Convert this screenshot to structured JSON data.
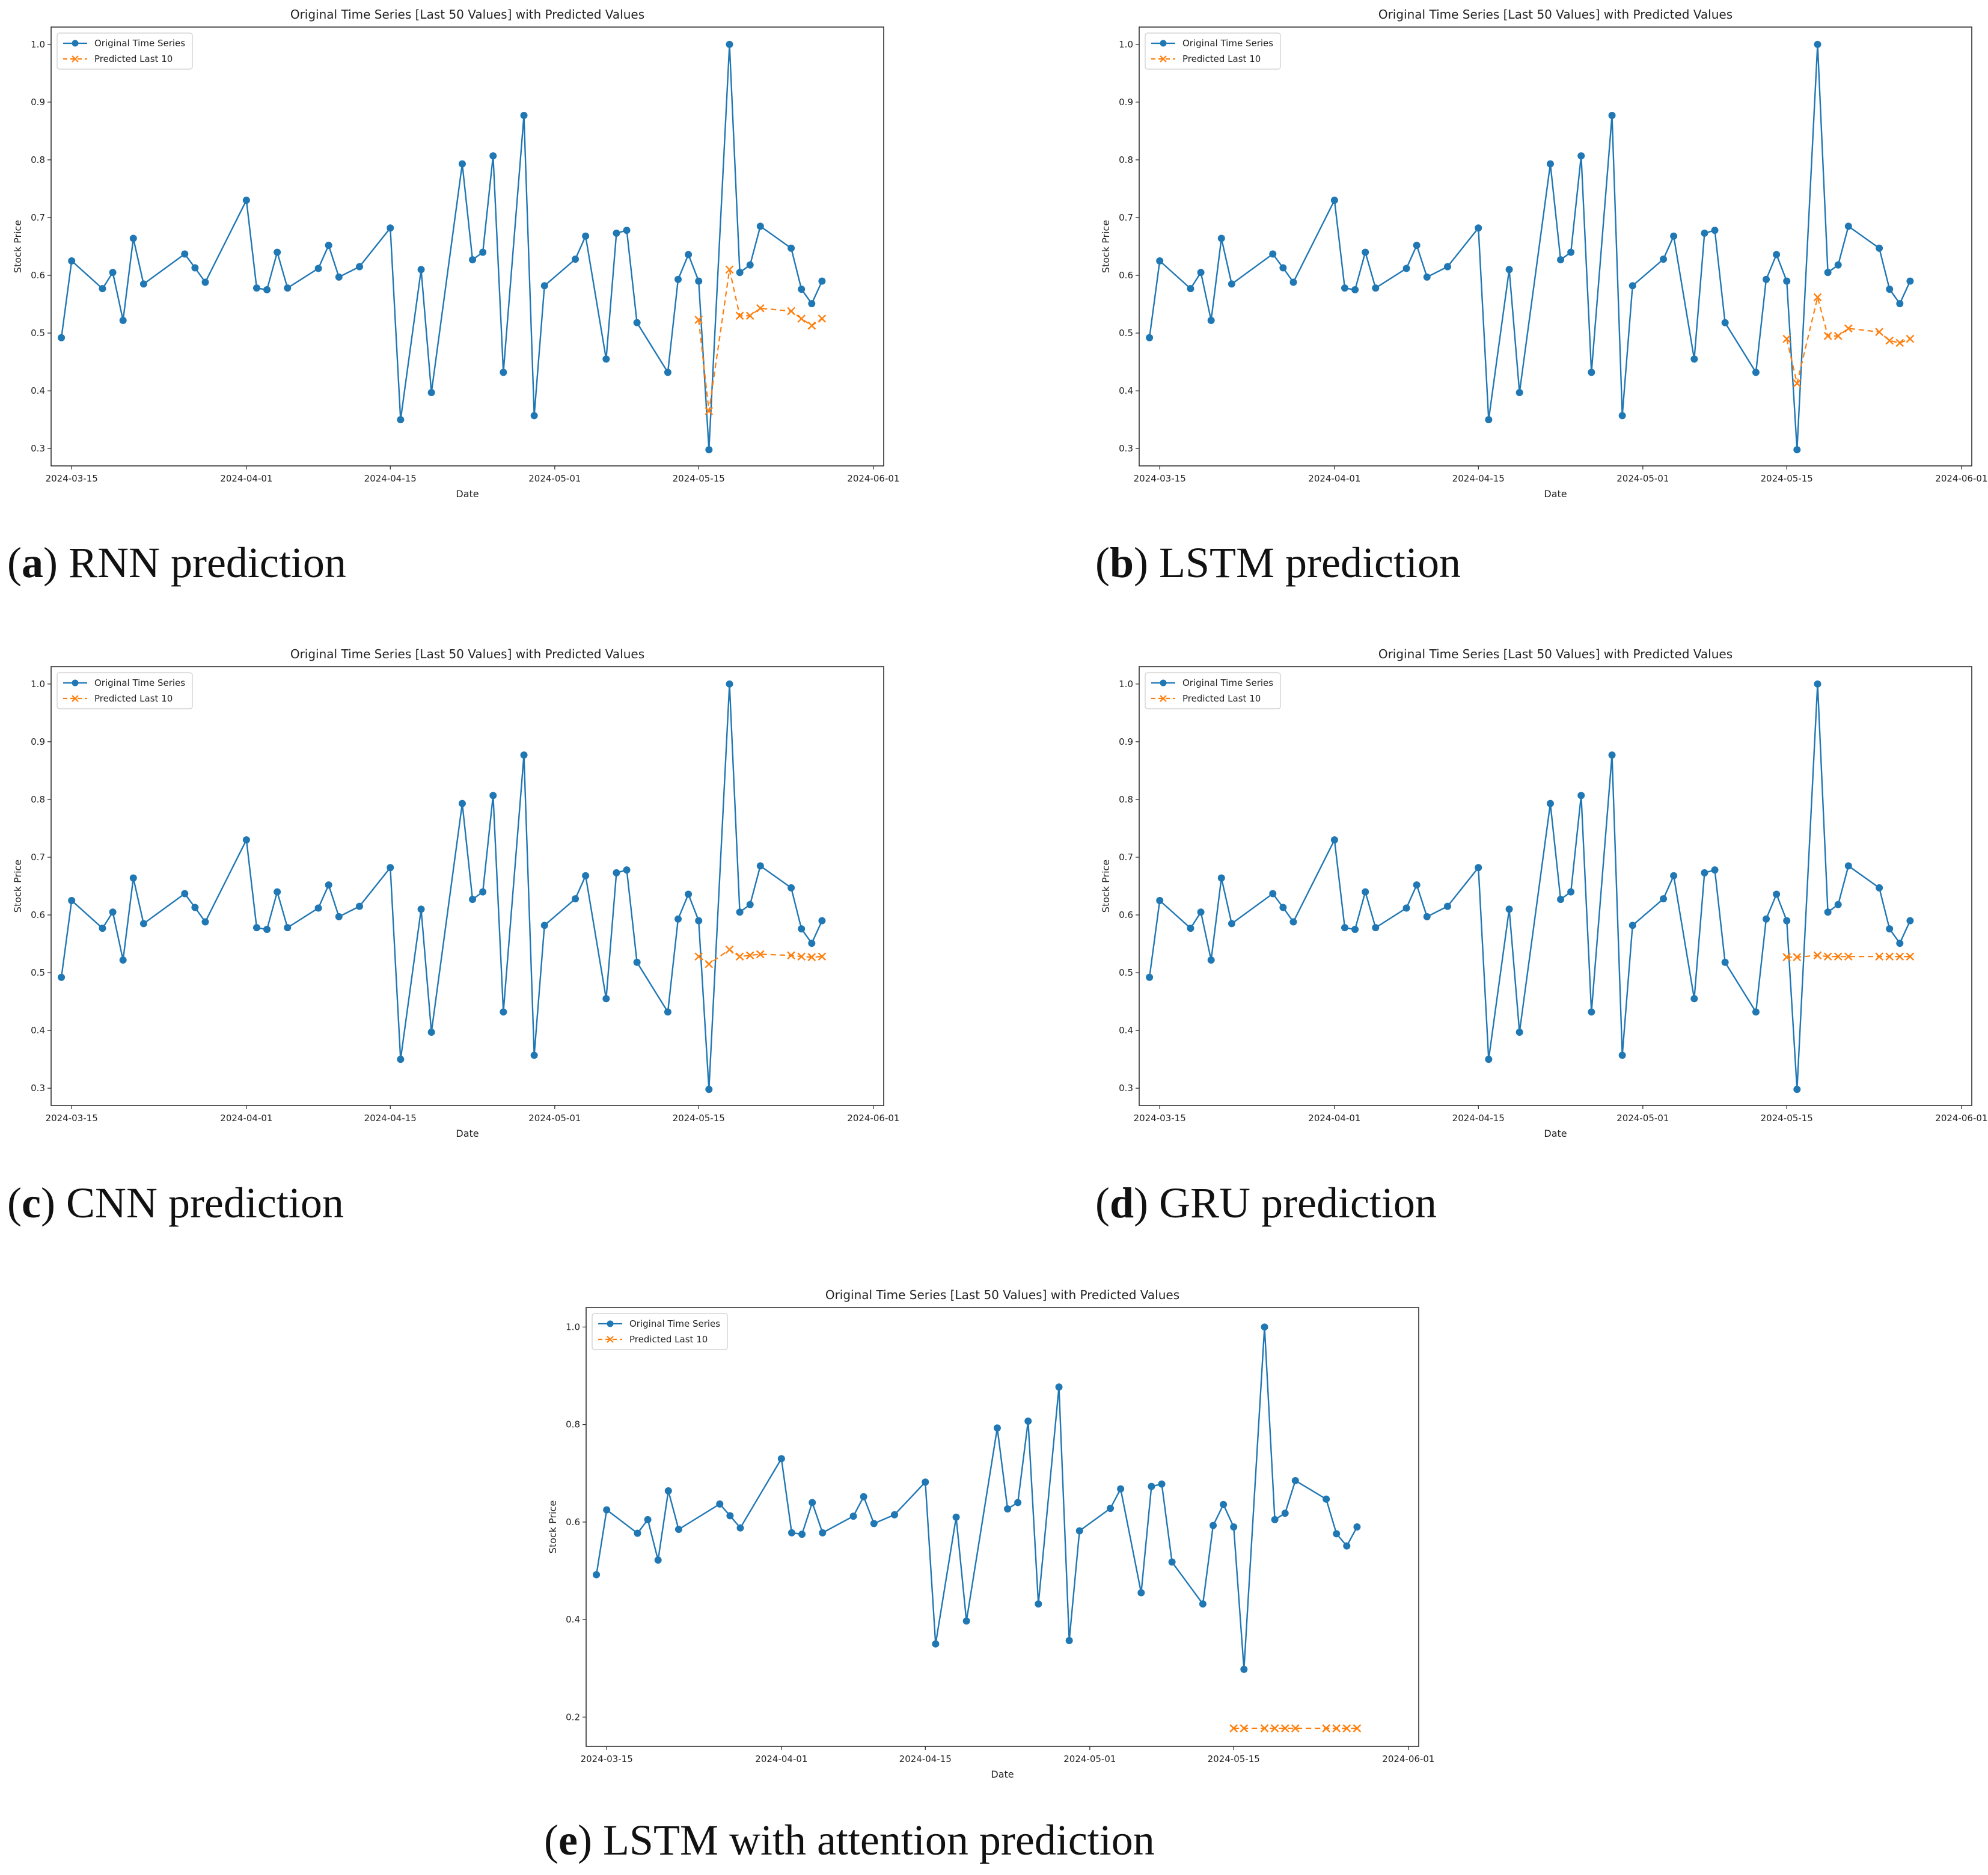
{
  "chart_data": [
    {
      "id": "a",
      "type": "line",
      "title": "Original Time Series [Last 50 Values] with Predicted Values",
      "xlabel": "Date",
      "ylabel": "Stock Price",
      "xlim_days": [
        -2,
        79
      ],
      "ylim": [
        0.27,
        1.03
      ],
      "yticks": [
        "0.3",
        "0.4",
        "0.5",
        "0.6",
        "0.7",
        "0.8",
        "0.9",
        "1.0"
      ],
      "xticks": [
        "2024-03-15",
        "2024-04-01",
        "2024-04-15",
        "2024-05-01",
        "2024-05-15",
        "2024-06-01"
      ],
      "xtick_days": [
        0,
        17,
        31,
        47,
        61,
        78
      ],
      "caption_letter": "a",
      "caption_text": " RNN prediction",
      "series": [
        {
          "name": "Original Time Series",
          "color": "#1f77b4",
          "marker": "o",
          "x_days": [
            -1,
            0,
            3,
            4,
            5,
            6,
            7,
            11,
            12,
            13,
            17,
            18,
            19,
            20,
            21,
            24,
            25,
            26,
            28,
            31,
            32,
            34,
            35,
            38,
            39,
            40,
            41,
            42,
            44,
            45,
            46,
            49,
            50,
            52,
            53,
            54,
            55,
            58,
            59,
            60,
            61,
            62,
            64,
            65,
            66,
            67,
            70,
            71,
            72,
            73
          ],
          "values": [
            0.492,
            0.625,
            0.577,
            0.605,
            0.522,
            0.664,
            0.585,
            0.637,
            0.613,
            0.588,
            0.73,
            0.578,
            0.575,
            0.64,
            0.578,
            0.612,
            0.652,
            0.597,
            0.615,
            0.682,
            0.35,
            0.61,
            0.397,
            0.793,
            0.627,
            0.64,
            0.807,
            0.432,
            0.877,
            0.357,
            0.582,
            0.628,
            0.668,
            0.455,
            0.673,
            0.678,
            0.518,
            0.432,
            0.593,
            0.636,
            0.59,
            0.298,
            1.0,
            0.605,
            0.618,
            0.685,
            0.647,
            0.576,
            0.551,
            0.59
          ]
        },
        {
          "name": "Predicted Last 10",
          "color": "#ff7f0e",
          "marker": "x",
          "x_days": [
            61,
            62,
            64,
            65,
            66,
            67,
            70,
            71,
            72,
            73
          ],
          "values": [
            0.523,
            0.365,
            0.61,
            0.53,
            0.53,
            0.543,
            0.538,
            0.525,
            0.513,
            0.525
          ]
        }
      ]
    },
    {
      "id": "b",
      "type": "line",
      "title": "Original Time Series [Last 50 Values] with Predicted Values",
      "xlabel": "Date",
      "ylabel": "Stock Price",
      "xlim_days": [
        -2,
        79
      ],
      "ylim": [
        0.27,
        1.03
      ],
      "yticks": [
        "0.3",
        "0.4",
        "0.5",
        "0.6",
        "0.7",
        "0.8",
        "0.9",
        "1.0"
      ],
      "xticks": [
        "2024-03-15",
        "2024-04-01",
        "2024-04-15",
        "2024-05-01",
        "2024-05-15",
        "2024-06-01"
      ],
      "xtick_days": [
        0,
        17,
        31,
        47,
        61,
        78
      ],
      "caption_letter": "b",
      "caption_text": " LSTM prediction",
      "series": [
        {
          "name": "Original Time Series",
          "color": "#1f77b4",
          "marker": "o",
          "x_days": [
            -1,
            0,
            3,
            4,
            5,
            6,
            7,
            11,
            12,
            13,
            17,
            18,
            19,
            20,
            21,
            24,
            25,
            26,
            28,
            31,
            32,
            34,
            35,
            38,
            39,
            40,
            41,
            42,
            44,
            45,
            46,
            49,
            50,
            52,
            53,
            54,
            55,
            58,
            59,
            60,
            61,
            62,
            64,
            65,
            66,
            67,
            70,
            71,
            72,
            73
          ],
          "values": [
            0.492,
            0.625,
            0.577,
            0.605,
            0.522,
            0.664,
            0.585,
            0.637,
            0.613,
            0.588,
            0.73,
            0.578,
            0.575,
            0.64,
            0.578,
            0.612,
            0.652,
            0.597,
            0.615,
            0.682,
            0.35,
            0.61,
            0.397,
            0.793,
            0.627,
            0.64,
            0.807,
            0.432,
            0.877,
            0.357,
            0.582,
            0.628,
            0.668,
            0.455,
            0.673,
            0.678,
            0.518,
            0.432,
            0.593,
            0.636,
            0.59,
            0.298,
            1.0,
            0.605,
            0.618,
            0.685,
            0.647,
            0.576,
            0.551,
            0.59
          ]
        },
        {
          "name": "Predicted Last 10",
          "color": "#ff7f0e",
          "marker": "x",
          "x_days": [
            61,
            62,
            64,
            65,
            66,
            67,
            70,
            71,
            72,
            73
          ],
          "values": [
            0.49,
            0.413,
            0.562,
            0.495,
            0.495,
            0.508,
            0.502,
            0.487,
            0.483,
            0.49
          ]
        }
      ]
    },
    {
      "id": "c",
      "type": "line",
      "title": "Original Time Series [Last 50 Values] with Predicted Values",
      "xlabel": "Date",
      "ylabel": "Stock Price",
      "xlim_days": [
        -2,
        79
      ],
      "ylim": [
        0.27,
        1.03
      ],
      "yticks": [
        "0.3",
        "0.4",
        "0.5",
        "0.6",
        "0.7",
        "0.8",
        "0.9",
        "1.0"
      ],
      "xticks": [
        "2024-03-15",
        "2024-04-01",
        "2024-04-15",
        "2024-05-01",
        "2024-05-15",
        "2024-06-01"
      ],
      "xtick_days": [
        0,
        17,
        31,
        47,
        61,
        78
      ],
      "caption_letter": "c",
      "caption_text": " CNN prediction",
      "series": [
        {
          "name": "Original Time Series",
          "color": "#1f77b4",
          "marker": "o",
          "x_days": [
            -1,
            0,
            3,
            4,
            5,
            6,
            7,
            11,
            12,
            13,
            17,
            18,
            19,
            20,
            21,
            24,
            25,
            26,
            28,
            31,
            32,
            34,
            35,
            38,
            39,
            40,
            41,
            42,
            44,
            45,
            46,
            49,
            50,
            52,
            53,
            54,
            55,
            58,
            59,
            60,
            61,
            62,
            64,
            65,
            66,
            67,
            70,
            71,
            72,
            73
          ],
          "values": [
            0.492,
            0.625,
            0.577,
            0.605,
            0.522,
            0.664,
            0.585,
            0.637,
            0.613,
            0.588,
            0.73,
            0.578,
            0.575,
            0.64,
            0.578,
            0.612,
            0.652,
            0.597,
            0.615,
            0.682,
            0.35,
            0.61,
            0.397,
            0.793,
            0.627,
            0.64,
            0.807,
            0.432,
            0.877,
            0.357,
            0.582,
            0.628,
            0.668,
            0.455,
            0.673,
            0.678,
            0.518,
            0.432,
            0.593,
            0.636,
            0.59,
            0.298,
            1.0,
            0.605,
            0.618,
            0.685,
            0.647,
            0.576,
            0.551,
            0.59
          ]
        },
        {
          "name": "Predicted Last 10",
          "color": "#ff7f0e",
          "marker": "x",
          "x_days": [
            61,
            62,
            64,
            65,
            66,
            67,
            70,
            71,
            72,
            73
          ],
          "values": [
            0.528,
            0.515,
            0.54,
            0.528,
            0.53,
            0.532,
            0.53,
            0.528,
            0.527,
            0.528
          ]
        }
      ]
    },
    {
      "id": "d",
      "type": "line",
      "title": "Original Time Series [Last 50 Values] with Predicted Values",
      "xlabel": "Date",
      "ylabel": "Stock Price",
      "xlim_days": [
        -2,
        79
      ],
      "ylim": [
        0.27,
        1.03
      ],
      "yticks": [
        "0.3",
        "0.4",
        "0.5",
        "0.6",
        "0.7",
        "0.8",
        "0.9",
        "1.0"
      ],
      "xticks": [
        "2024-03-15",
        "2024-04-01",
        "2024-04-15",
        "2024-05-01",
        "2024-05-15",
        "2024-06-01"
      ],
      "xtick_days": [
        0,
        17,
        31,
        47,
        61,
        78
      ],
      "caption_letter": "d",
      "caption_text": " GRU prediction",
      "series": [
        {
          "name": "Original Time Series",
          "color": "#1f77b4",
          "marker": "o",
          "x_days": [
            -1,
            0,
            3,
            4,
            5,
            6,
            7,
            11,
            12,
            13,
            17,
            18,
            19,
            20,
            21,
            24,
            25,
            26,
            28,
            31,
            32,
            34,
            35,
            38,
            39,
            40,
            41,
            42,
            44,
            45,
            46,
            49,
            50,
            52,
            53,
            54,
            55,
            58,
            59,
            60,
            61,
            62,
            64,
            65,
            66,
            67,
            70,
            71,
            72,
            73
          ],
          "values": [
            0.492,
            0.625,
            0.577,
            0.605,
            0.522,
            0.664,
            0.585,
            0.637,
            0.613,
            0.588,
            0.73,
            0.578,
            0.575,
            0.64,
            0.578,
            0.612,
            0.652,
            0.597,
            0.615,
            0.682,
            0.35,
            0.61,
            0.397,
            0.793,
            0.627,
            0.64,
            0.807,
            0.432,
            0.877,
            0.357,
            0.582,
            0.628,
            0.668,
            0.455,
            0.673,
            0.678,
            0.518,
            0.432,
            0.593,
            0.636,
            0.59,
            0.298,
            1.0,
            0.605,
            0.618,
            0.685,
            0.647,
            0.576,
            0.551,
            0.59
          ]
        },
        {
          "name": "Predicted Last 10",
          "color": "#ff7f0e",
          "marker": "x",
          "x_days": [
            61,
            62,
            64,
            65,
            66,
            67,
            70,
            71,
            72,
            73
          ],
          "values": [
            0.527,
            0.527,
            0.53,
            0.528,
            0.528,
            0.528,
            0.528,
            0.528,
            0.528,
            0.528
          ]
        }
      ]
    },
    {
      "id": "e",
      "type": "line",
      "title": "Original Time Series [Last 50 Values] with Predicted Values",
      "xlabel": "Date",
      "ylabel": "Stock Price",
      "xlim_days": [
        -2,
        79
      ],
      "ylim": [
        0.14,
        1.04
      ],
      "yticks": [
        "0.2",
        "0.4",
        "0.6",
        "0.8",
        "1.0"
      ],
      "xticks": [
        "2024-03-15",
        "2024-04-01",
        "2024-04-15",
        "2024-05-01",
        "2024-05-15",
        "2024-06-01"
      ],
      "xtick_days": [
        0,
        17,
        31,
        47,
        61,
        78
      ],
      "caption_letter": "e",
      "caption_text": " LSTM with attention prediction",
      "series": [
        {
          "name": "Original Time Series",
          "color": "#1f77b4",
          "marker": "o",
          "x_days": [
            -1,
            0,
            3,
            4,
            5,
            6,
            7,
            11,
            12,
            13,
            17,
            18,
            19,
            20,
            21,
            24,
            25,
            26,
            28,
            31,
            32,
            34,
            35,
            38,
            39,
            40,
            41,
            42,
            44,
            45,
            46,
            49,
            50,
            52,
            53,
            54,
            55,
            58,
            59,
            60,
            61,
            62,
            64,
            65,
            66,
            67,
            70,
            71,
            72,
            73
          ],
          "values": [
            0.492,
            0.625,
            0.577,
            0.605,
            0.522,
            0.664,
            0.585,
            0.637,
            0.613,
            0.588,
            0.73,
            0.578,
            0.575,
            0.64,
            0.578,
            0.612,
            0.652,
            0.597,
            0.615,
            0.682,
            0.35,
            0.61,
            0.397,
            0.793,
            0.627,
            0.64,
            0.807,
            0.432,
            0.877,
            0.357,
            0.582,
            0.628,
            0.668,
            0.455,
            0.673,
            0.678,
            0.518,
            0.432,
            0.593,
            0.636,
            0.59,
            0.298,
            1.0,
            0.605,
            0.618,
            0.685,
            0.647,
            0.576,
            0.551,
            0.59
          ]
        },
        {
          "name": "Predicted Last 10",
          "color": "#ff7f0e",
          "marker": "x",
          "x_days": [
            61,
            62,
            64,
            65,
            66,
            67,
            70,
            71,
            72,
            73
          ],
          "values": [
            0.177,
            0.177,
            0.177,
            0.177,
            0.177,
            0.177,
            0.177,
            0.177,
            0.177,
            0.177
          ]
        }
      ]
    }
  ]
}
